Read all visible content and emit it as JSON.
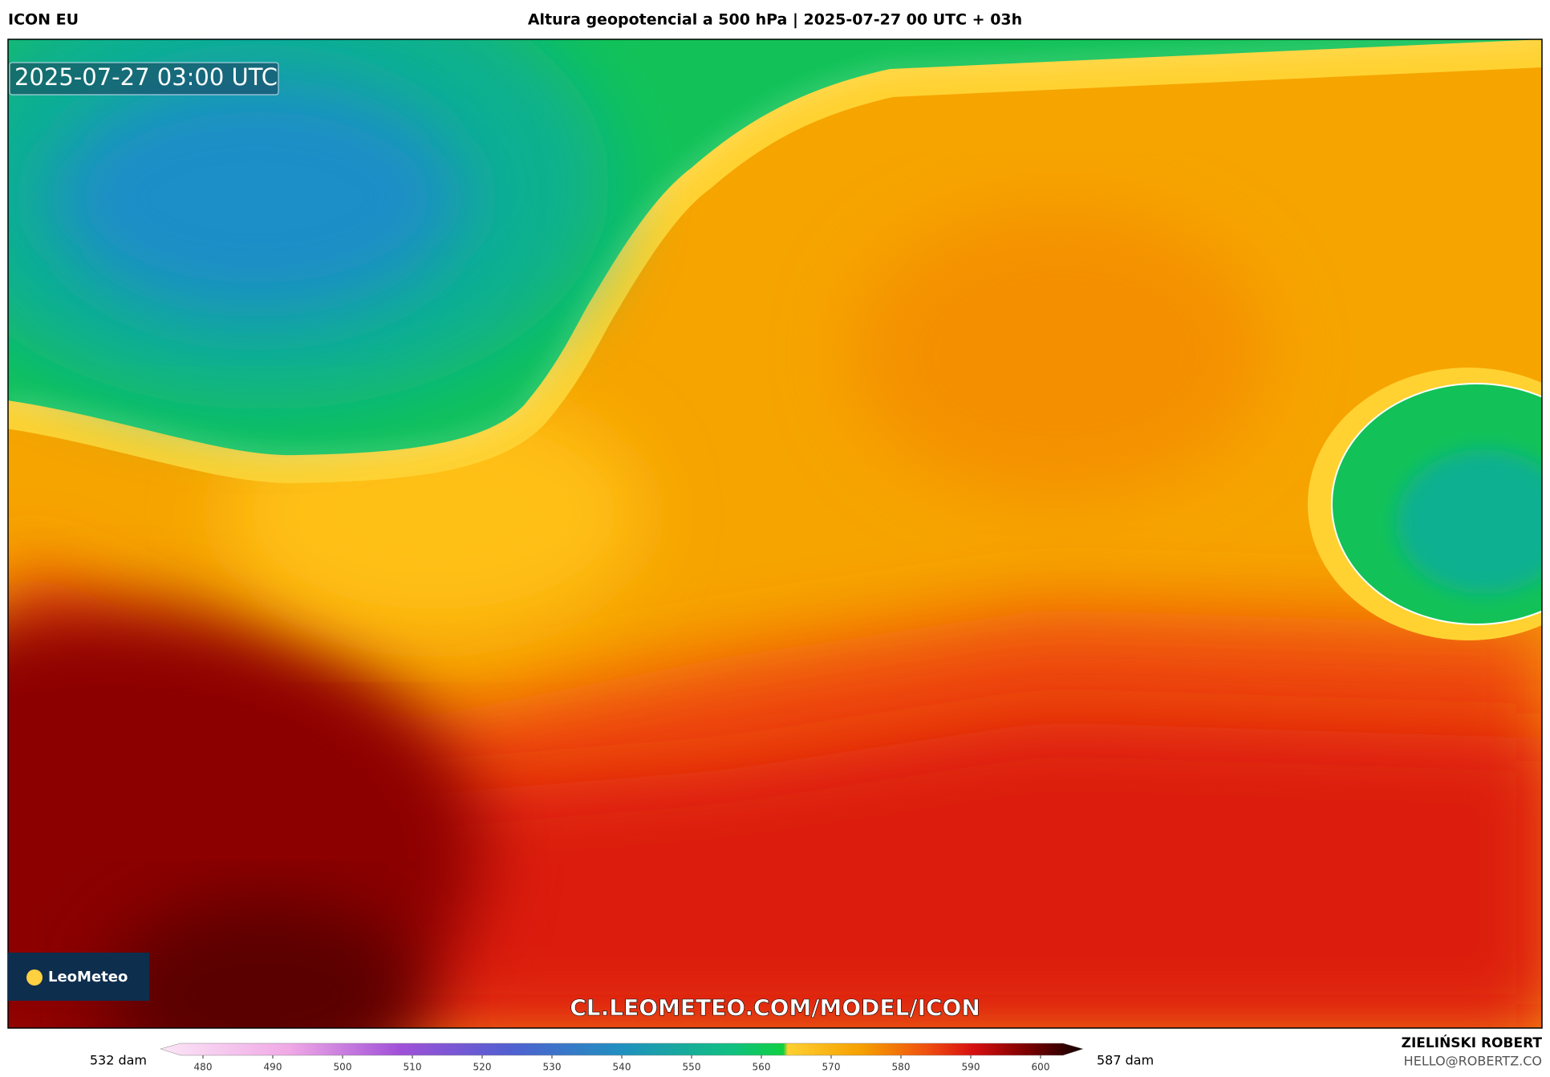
{
  "header": {
    "model": "ICON EU",
    "title": "Altura geopotencial a 500 hPa | 2025-07-27 00 UTC + 03h"
  },
  "map": {
    "timestamp": "2025-07-27 03:00 UTC",
    "watermark": "CL.LEOMETEO.COM/MODEL/ICON",
    "logo": "LeoMeteo"
  },
  "colorbar": {
    "min_label": "532 dam",
    "max_label": "587 dam",
    "ticks": [
      480,
      490,
      500,
      510,
      520,
      530,
      540,
      550,
      560,
      570,
      580,
      590,
      600
    ]
  },
  "credits": {
    "name": "ZIELIŃSKI ROBERT",
    "email": "HELLO@ROBERTZ.CO"
  }
}
